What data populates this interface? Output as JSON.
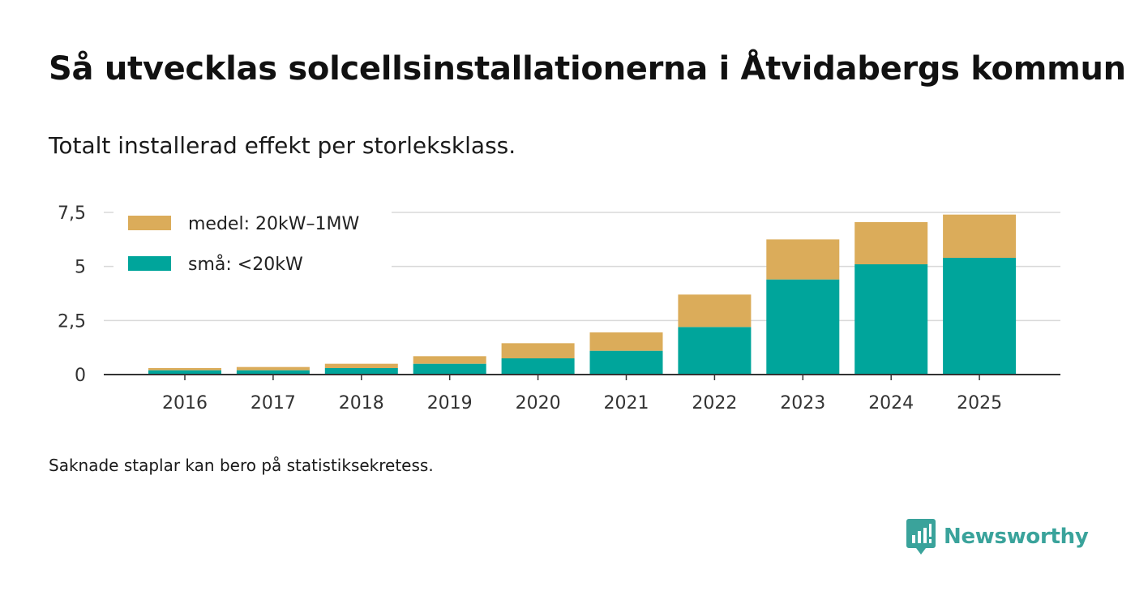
{
  "title": "Så utvecklas solcellsinstallationerna i Åtvidabergs kommun",
  "subtitle": "Totalt installerad effekt per storleksklass.",
  "note": "Saknade staplar kan bero på statistiksekretess.",
  "brand": {
    "name": "Newsworthy",
    "icon": "newsworthy-logo-icon",
    "color": "#3aa39b"
  },
  "chart_data": {
    "type": "bar",
    "stacked": true,
    "categories": [
      "2016",
      "2017",
      "2018",
      "2019",
      "2020",
      "2021",
      "2022",
      "2023",
      "2024",
      "2025"
    ],
    "series": [
      {
        "name": "små: <20kW",
        "color": "#00a59b",
        "values": [
          0.2,
          0.2,
          0.3,
          0.5,
          0.75,
          1.1,
          2.2,
          4.4,
          5.1,
          5.4
        ]
      },
      {
        "name": "medel: 20kW–1MW",
        "color": "#dbac5a",
        "values": [
          0.1,
          0.15,
          0.2,
          0.35,
          0.7,
          0.85,
          1.5,
          1.85,
          1.95,
          2.0
        ]
      }
    ],
    "legend_order": [
      "medel: 20kW–1MW",
      "små: <20kW"
    ],
    "legend_position": "top-left",
    "ylim": [
      0,
      7.5
    ],
    "yticks": [
      0,
      2.5,
      5,
      7.5
    ],
    "ytick_labels": [
      "0",
      "2,5",
      "5",
      "7,5"
    ],
    "grid": true,
    "xlabel": "",
    "ylabel": ""
  }
}
